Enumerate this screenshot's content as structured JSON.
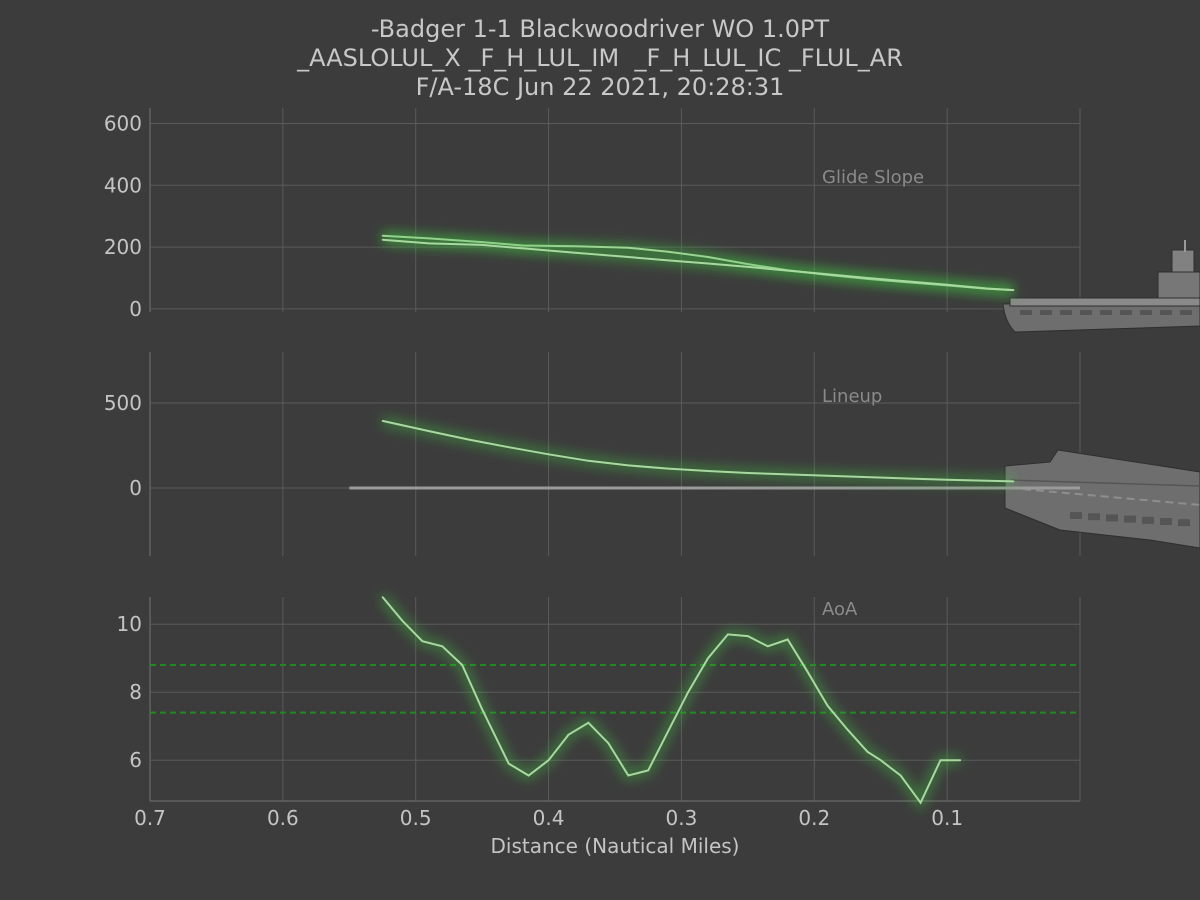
{
  "title": {
    "line1": "-Badger 1-1 Blackwoodriver WO 1.0PT",
    "line2": "_AASLOLUL_X _F_H_LUL_IM  _F_H_LUL_IC _FLUL_AR",
    "line3": "F/A-18C Jun 22 2021, 20:28:31"
  },
  "colors": {
    "background": "#3c3c3c",
    "grid": "#5a5a5a",
    "line": "#a8d8a0",
    "glow": "#3fbf3f",
    "threshold": "#1f8a1f",
    "centerline": "#9a9a9a",
    "carrier": "#7a7a7a"
  },
  "chart_data": [
    {
      "type": "line",
      "panel": "glide_slope",
      "label": "Glide Slope",
      "xlim": [
        0.7,
        0.0
      ],
      "ylim": [
        -10,
        650
      ],
      "yticks": [
        0,
        200,
        400,
        600
      ],
      "series": [
        {
          "x": [
            0.525,
            0.49,
            0.45,
            0.42,
            0.38,
            0.34,
            0.31,
            0.28,
            0.25,
            0.22,
            0.19,
            0.16,
            0.13,
            0.1,
            0.07,
            0.05
          ],
          "y": [
            237,
            228,
            216,
            205,
            203,
            198,
            185,
            168,
            145,
            125,
            110,
            97,
            86,
            76,
            65,
            61
          ]
        },
        {
          "x": [
            0.525,
            0.49,
            0.45,
            0.42,
            0.38,
            0.34,
            0.31,
            0.28,
            0.25,
            0.22,
            0.19,
            0.16,
            0.13,
            0.1,
            0.07,
            0.05
          ],
          "y": [
            224,
            212,
            207,
            196,
            182,
            168,
            157,
            147,
            136,
            124,
            112,
            100,
            89,
            78,
            66,
            61
          ]
        }
      ],
      "carrier": "side-view"
    },
    {
      "type": "line",
      "panel": "lineup",
      "label": "Lineup",
      "xlim": [
        0.7,
        0.0
      ],
      "ylim": [
        -400,
        800
      ],
      "yticks": [
        0,
        500
      ],
      "series": [
        {
          "x": [
            0.525,
            0.49,
            0.46,
            0.43,
            0.4,
            0.37,
            0.34,
            0.31,
            0.28,
            0.25,
            0.22,
            0.19,
            0.16,
            0.13,
            0.1,
            0.07,
            0.05
          ],
          "y": [
            395,
            335,
            285,
            240,
            198,
            160,
            133,
            114,
            100,
            88,
            80,
            72,
            64,
            56,
            49,
            43,
            39
          ]
        }
      ],
      "centerline": {
        "x": [
          0.55,
          0.0
        ],
        "y": [
          0,
          0
        ]
      },
      "carrier": "top-view"
    },
    {
      "type": "line",
      "panel": "aoa",
      "label": "AoA",
      "xlabel": "Distance (Nautical Miles)",
      "xlim": [
        0.7,
        0.0
      ],
      "ylim": [
        4.8,
        10.8
      ],
      "yticks": [
        6,
        8,
        10
      ],
      "xticks": [
        0.7,
        0.6,
        0.5,
        0.4,
        0.3,
        0.2,
        0.1
      ],
      "thresholds": [
        8.8,
        7.4
      ],
      "series": [
        {
          "x": [
            0.525,
            0.51,
            0.495,
            0.48,
            0.465,
            0.45,
            0.44,
            0.43,
            0.415,
            0.4,
            0.385,
            0.37,
            0.355,
            0.34,
            0.325,
            0.31,
            0.295,
            0.28,
            0.265,
            0.25,
            0.235,
            0.22,
            0.205,
            0.19,
            0.175,
            0.16,
            0.15,
            0.135,
            0.12,
            0.105,
            0.09
          ],
          "y": [
            10.8,
            10.1,
            9.5,
            9.35,
            8.8,
            7.5,
            6.7,
            5.9,
            5.55,
            6.0,
            6.75,
            7.1,
            6.5,
            5.55,
            5.7,
            6.85,
            8.0,
            9.0,
            9.7,
            9.65,
            9.35,
            9.55,
            8.6,
            7.6,
            6.9,
            6.25,
            6.0,
            5.55,
            4.75,
            6.0,
            6.0
          ]
        }
      ]
    }
  ]
}
